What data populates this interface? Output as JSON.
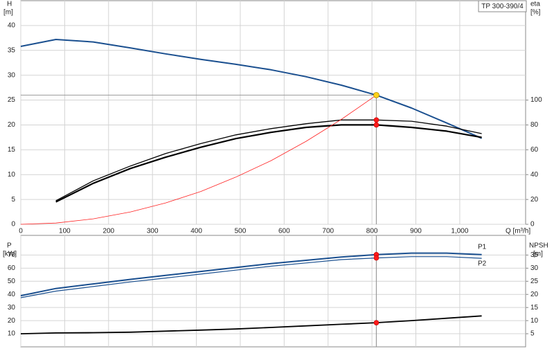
{
  "chart_data": [
    {
      "type": "line",
      "title": "TP 300-390/4",
      "ylabel": "H",
      "yunit": "[m]",
      "y2label": "eta",
      "y2unit": "[%]",
      "xlabel": "Q [m³/h]",
      "x": [
        0,
        80,
        165,
        250,
        330,
        410,
        490,
        570,
        650,
        730,
        810,
        890,
        970,
        1050
      ],
      "xlim": [
        0,
        1150
      ],
      "xticks": [
        0,
        100,
        200,
        300,
        400,
        500,
        600,
        700,
        800,
        900,
        {
          "value": 1000,
          "label": "1,000"
        }
      ],
      "ylim": [
        0,
        45
      ],
      "yticks": [
        0,
        5,
        10,
        15,
        20,
        25,
        30,
        35,
        40
      ],
      "y2lim": [
        0,
        180
      ],
      "y2ticks": [
        0,
        20,
        40,
        60,
        80,
        100
      ],
      "grid": true,
      "xticklabels": true,
      "duty_point": {
        "x": 810,
        "y": 26
      },
      "series": [
        {
          "color": "#1a4f8f",
          "values": [
            35.8,
            37.2,
            36.7,
            35.5,
            34.3,
            33.2,
            32.2,
            31.1,
            29.7,
            28.0,
            26.0,
            23.4,
            20.4,
            17.3
          ]
        },
        {
          "color": "#000000",
          "axis": "y2",
          "dot": true,
          "values": [
            null,
            19,
            35,
            47,
            57,
            65,
            72,
            77,
            81,
            84,
            84,
            83,
            79,
            73
          ]
        },
        {
          "color": "#000000",
          "axis": "y2",
          "dot": true,
          "values": [
            null,
            18,
            33,
            45,
            54,
            62,
            69,
            74,
            78,
            80,
            80,
            78,
            75,
            70
          ]
        },
        {
          "color": "#ff2020",
          "values": [
            0,
            0.25,
            1.1,
            2.5,
            4.3,
            6.6,
            9.5,
            12.8,
            16.7,
            21.1,
            26.0,
            null,
            null,
            null
          ]
        }
      ]
    },
    {
      "type": "line",
      "ylabel": "P",
      "yunit": "[kW]",
      "y2label": "NPSH",
      "y2unit": "[m]",
      "x": [
        0,
        80,
        165,
        250,
        330,
        410,
        490,
        570,
        650,
        730,
        810,
        890,
        970,
        1050
      ],
      "xlim": [
        0,
        1150
      ],
      "xticks": [
        0,
        100,
        200,
        300,
        400,
        500,
        600,
        700,
        800,
        900,
        1000
      ],
      "ylim": [
        0,
        85
      ],
      "yticks": [
        10,
        20,
        30,
        40,
        50,
        60,
        70
      ],
      "y2lim": [
        0,
        42.5
      ],
      "y2ticks": [
        5,
        10,
        15,
        20,
        25,
        30,
        35
      ],
      "grid": true,
      "xticklabels": false,
      "series": [
        {
          "name": "P1",
          "color": "#1a4f8f",
          "dot": true,
          "values": [
            39,
            44.5,
            48,
            51.5,
            54.5,
            57.5,
            60.5,
            63.5,
            66,
            68.5,
            70.3,
            71.5,
            71.5,
            70.3
          ]
        },
        {
          "name": "P2",
          "color": "#1a4f8f",
          "dot": true,
          "values": [
            37.5,
            42.5,
            46,
            49.5,
            52.5,
            55.5,
            58.5,
            61.5,
            64,
            66.5,
            67.8,
            68.8,
            68.8,
            67.5
          ]
        },
        {
          "color": "#000000",
          "axis": "y2",
          "dot": true,
          "values": [
            5,
            5.3,
            5.4,
            5.6,
            6.0,
            6.4,
            6.8,
            7.4,
            8.0,
            8.6,
            9.2,
            10.0,
            10.9,
            11.8
          ]
        }
      ]
    }
  ]
}
